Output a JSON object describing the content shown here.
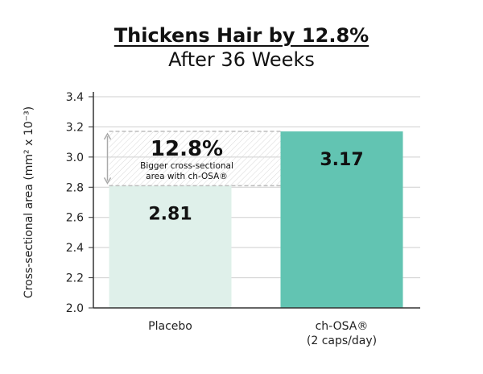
{
  "chart_data": {
    "type": "bar",
    "title": "Thickens Hair by 12.8%",
    "subtitle": "After 36 Weeks",
    "ylabel": "Cross-sectional area (mm² x 10⁻³)",
    "ylim": [
      2.0,
      3.4
    ],
    "yticks": [
      "2.0",
      "2.2",
      "2.4",
      "2.6",
      "2.8",
      "3.0",
      "3.2",
      "3.4"
    ],
    "grid": true,
    "categories": [
      "Placebo",
      "ch-OSA®\n(2 caps/day)"
    ],
    "category_lines": [
      [
        "Placebo"
      ],
      [
        "ch-OSA®",
        "(2 caps/day)"
      ]
    ],
    "values": [
      2.81,
      3.17
    ],
    "value_labels": [
      "2.81",
      "3.17"
    ],
    "colors": [
      "#dff0ea",
      "#62c4b2"
    ],
    "annotation": {
      "headline": "12.8%",
      "line1": "Bigger cross-sectional",
      "line2": "area with ch-OSA®"
    }
  }
}
